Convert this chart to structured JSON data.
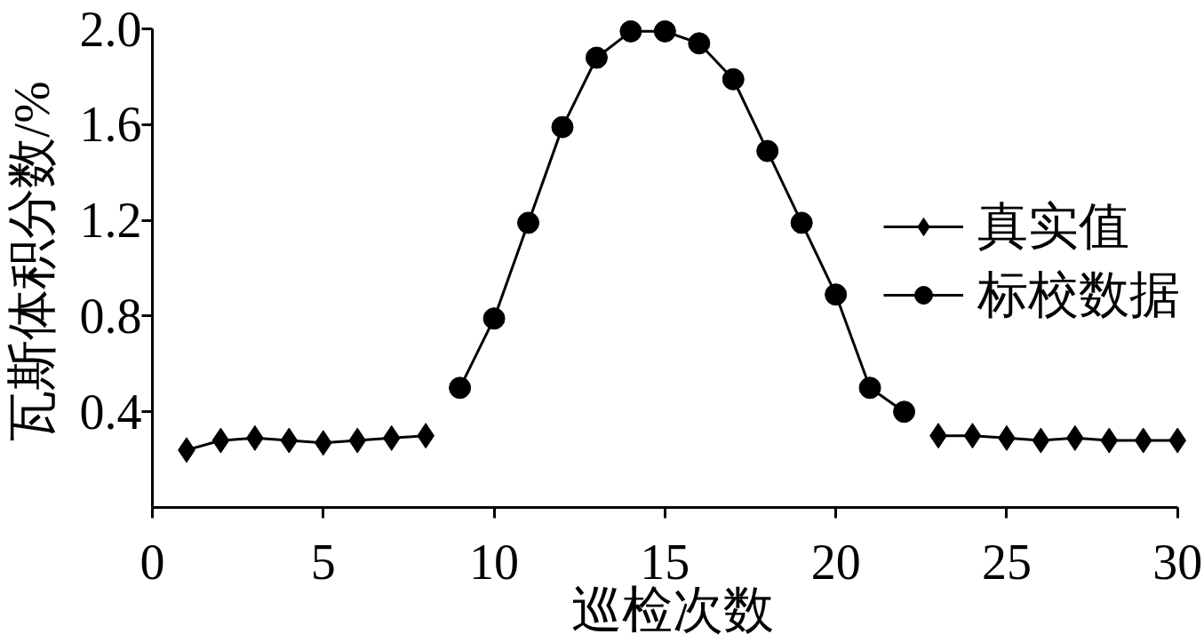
{
  "chart_data": {
    "type": "line",
    "xlabel": "巡检次数",
    "ylabel": "瓦斯体积分数/%",
    "x": [
      1,
      2,
      3,
      4,
      5,
      6,
      7,
      8,
      9,
      10,
      11,
      12,
      13,
      14,
      15,
      16,
      17,
      18,
      19,
      20,
      21,
      22,
      23,
      24,
      25,
      26,
      27,
      28,
      29,
      30
    ],
    "xlim": [
      0,
      30
    ],
    "xticks": [
      0,
      5,
      10,
      15,
      20,
      25,
      30
    ],
    "ylim": [
      0,
      2.0
    ],
    "yticks": [
      0.4,
      0.8,
      1.2,
      1.6,
      {
        "value": 2.0,
        "label": "2.0"
      }
    ],
    "legend": "right",
    "grid": false,
    "line_style": "solid",
    "series": [
      {
        "name": "真实值",
        "color": "#000000",
        "marker": "diamond",
        "values": [
          0.24,
          0.28,
          0.29,
          0.28,
          0.27,
          0.28,
          0.29,
          0.3,
          null,
          null,
          null,
          null,
          null,
          null,
          null,
          null,
          null,
          null,
          null,
          null,
          null,
          null,
          0.3,
          0.3,
          0.29,
          0.28,
          0.29,
          0.28,
          0.28,
          0.28
        ]
      },
      {
        "name": "标校数据",
        "color": "#000000",
        "marker": "circle",
        "values": [
          null,
          null,
          null,
          null,
          null,
          null,
          null,
          null,
          0.5,
          0.79,
          1.19,
          1.59,
          1.88,
          1.99,
          1.99,
          1.94,
          1.79,
          1.49,
          1.19,
          0.89,
          0.5,
          0.4,
          null,
          null,
          null,
          null,
          null,
          null,
          null,
          null
        ]
      }
    ]
  }
}
